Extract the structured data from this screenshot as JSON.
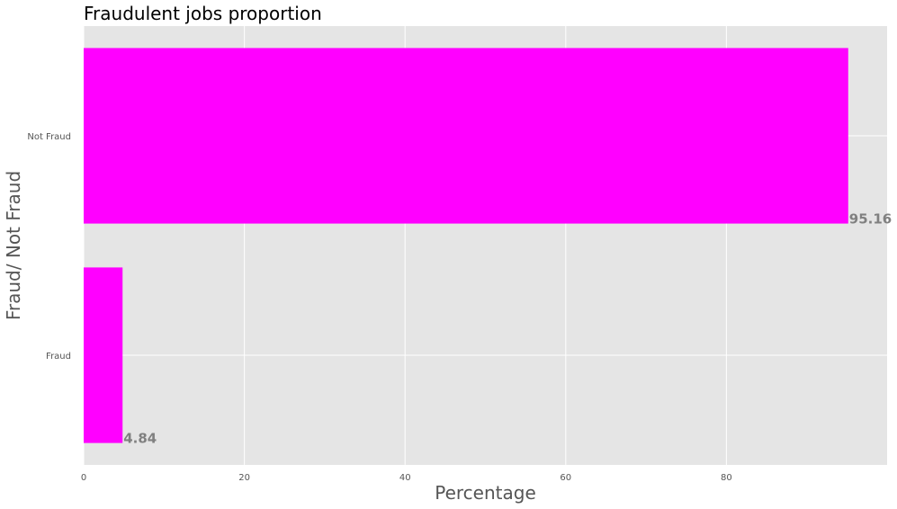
{
  "chart_data": {
    "type": "bar",
    "orientation": "horizontal",
    "title": "Fraudulent jobs proportion",
    "xlabel": "Percentage",
    "ylabel": "Fraud/ Not Fraud",
    "categories": [
      "Not Fraud",
      "Fraud"
    ],
    "values": [
      95.16,
      4.84
    ],
    "data_labels": [
      "95.16",
      "4.84"
    ],
    "xlim": [
      0,
      100
    ],
    "xticks": [
      0,
      20,
      40,
      60,
      80
    ],
    "xtick_labels": [
      "0",
      "20",
      "40",
      "60",
      "80"
    ],
    "grid": true,
    "bar_color": "#ff00ff",
    "background_color": "#e5e5e5",
    "grid_color": "#ffffff",
    "label_color": "#808080"
  }
}
